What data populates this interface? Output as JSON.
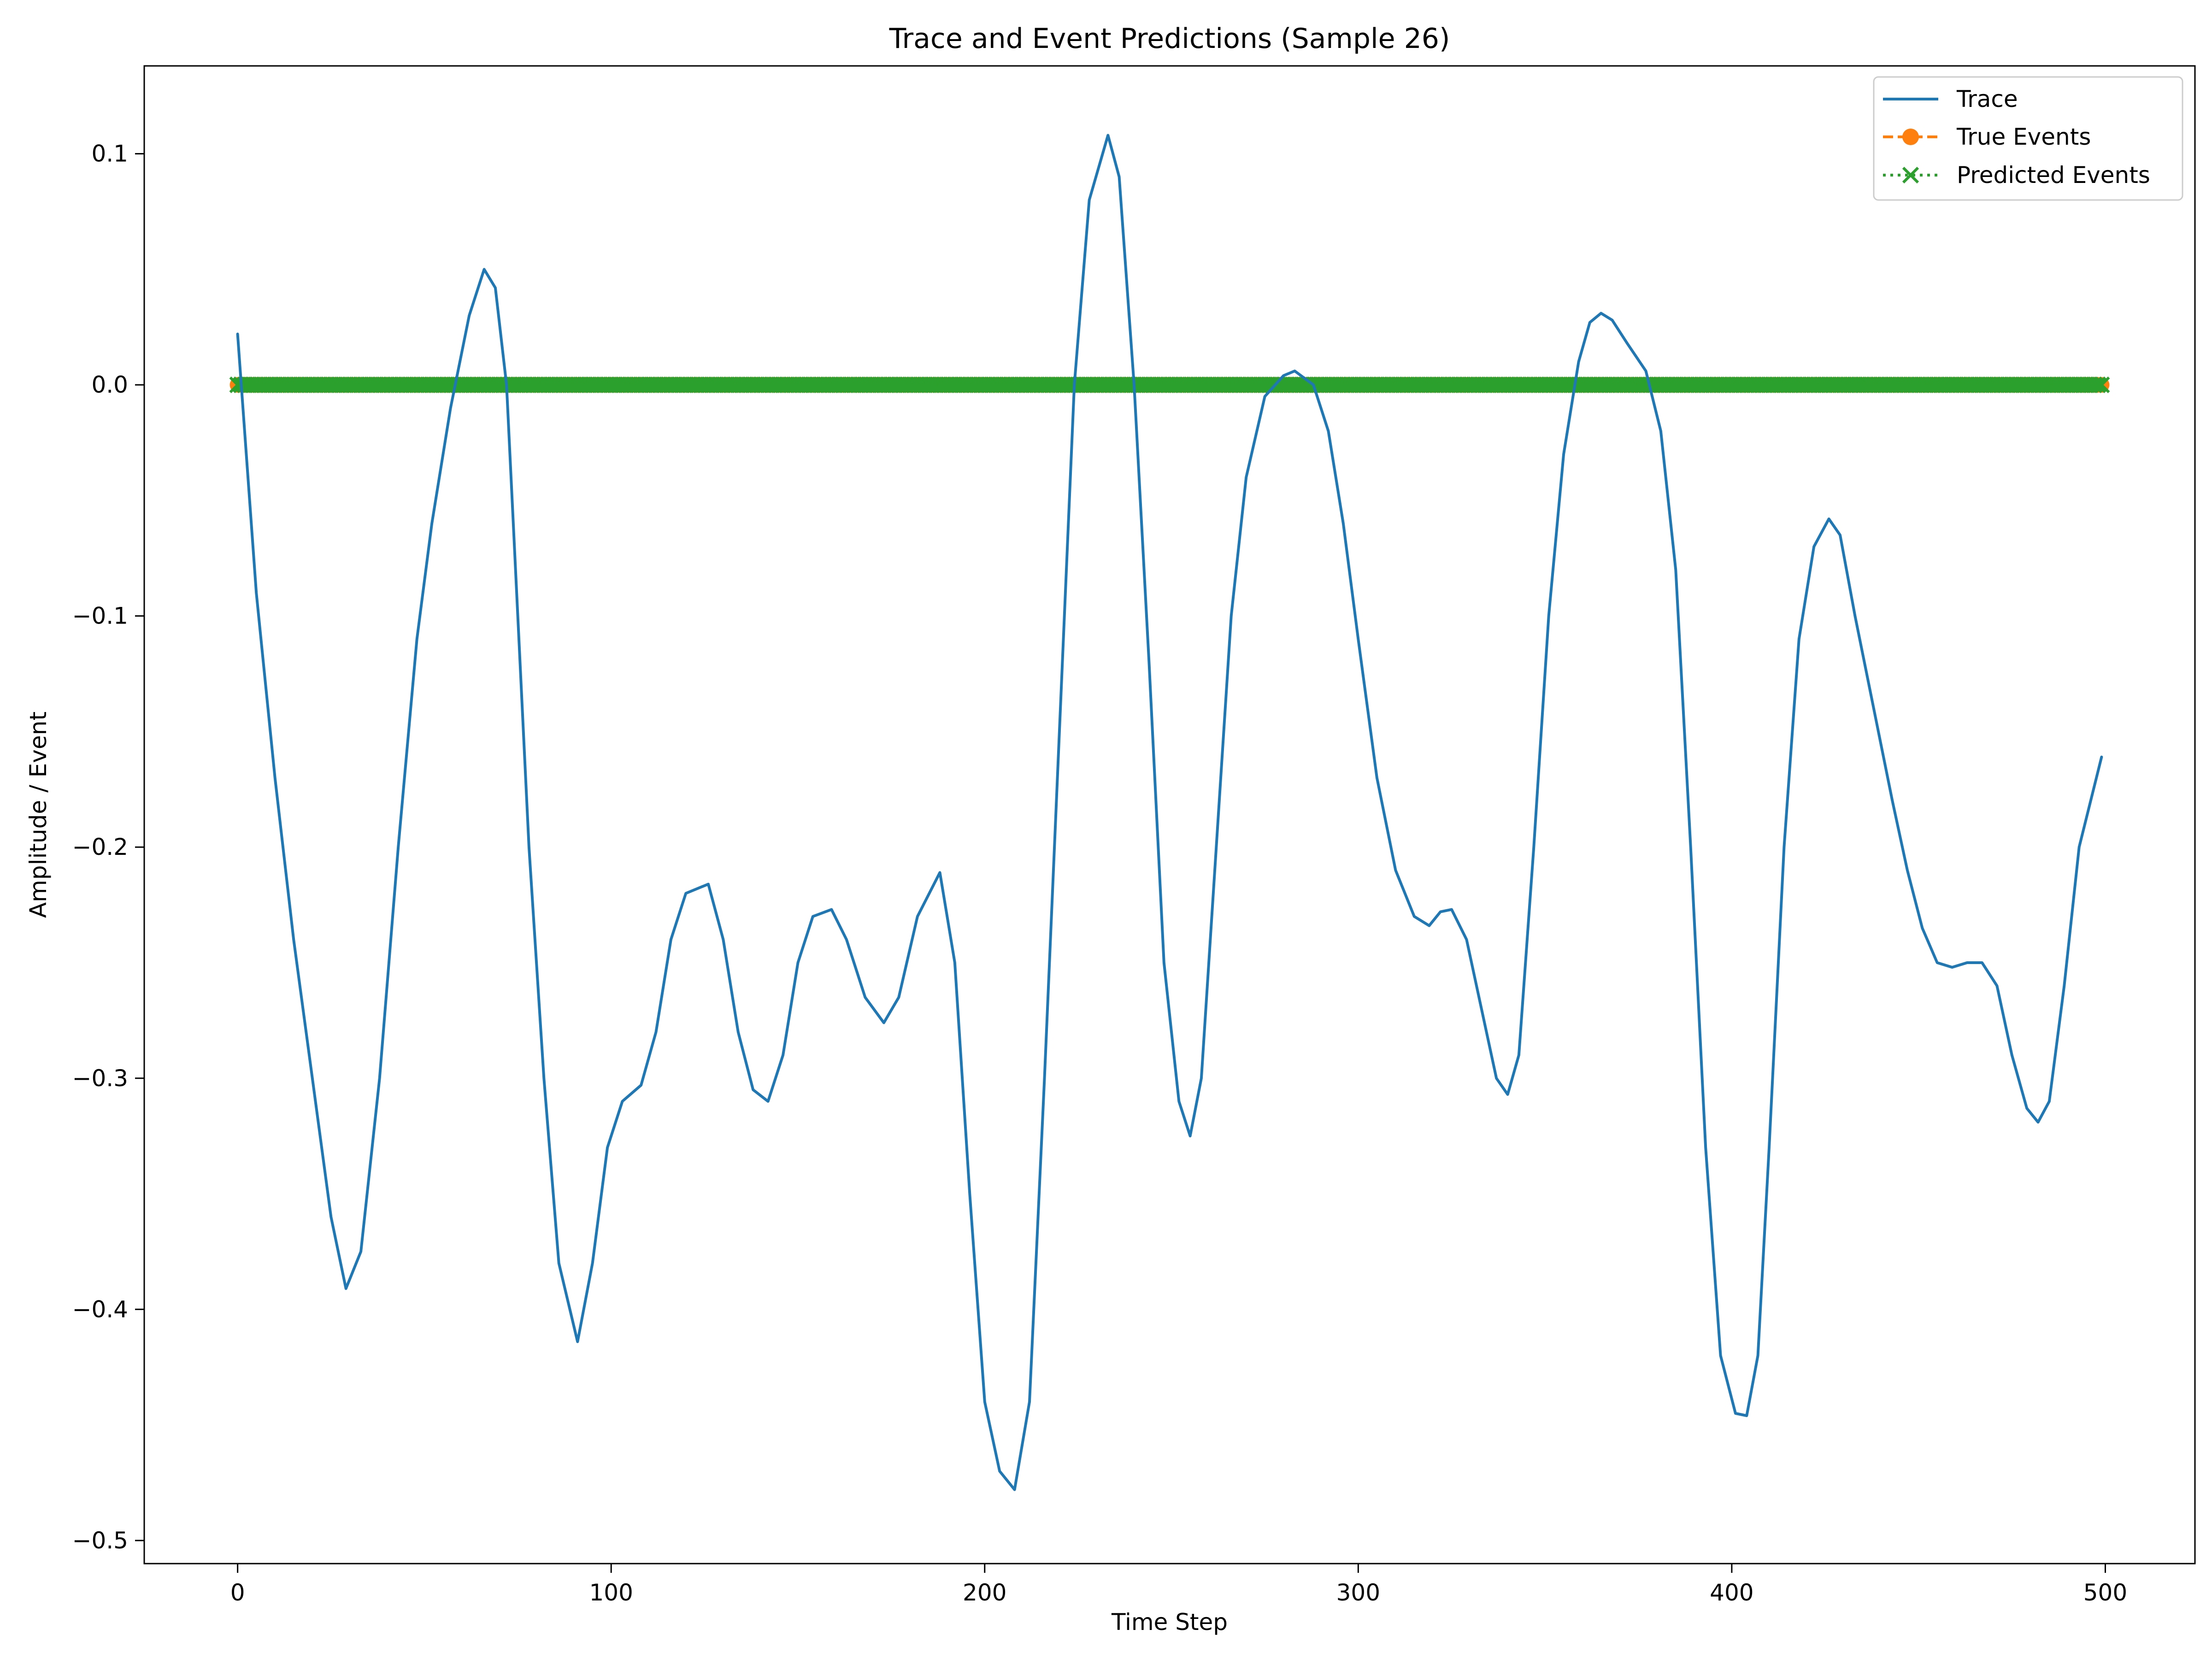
{
  "chart_data": {
    "type": "line",
    "title": "Trace and Event Predictions (Sample 26)",
    "xlabel": "Time Step",
    "ylabel": "Amplitude / Event",
    "xlim": [
      -25,
      524
    ],
    "ylim": [
      -0.51,
      0.138
    ],
    "xticks": [
      0,
      100,
      200,
      300,
      400,
      500
    ],
    "yticks": [
      0.1,
      0.0,
      -0.1,
      -0.2,
      -0.3,
      -0.4,
      -0.5
    ],
    "xtick_labels": [
      "0",
      "100",
      "200",
      "300",
      "400",
      "500"
    ],
    "ytick_labels": [
      "0.1",
      "0.0",
      "−0.1",
      "−0.2",
      "−0.3",
      "−0.4",
      "−0.5"
    ],
    "grid": false,
    "legend_position": "top-right",
    "series": [
      {
        "name": "Trace",
        "color": "#1f77b4",
        "style": "solid",
        "points": [
          [
            0,
            0.022
          ],
          [
            5,
            -0.09
          ],
          [
            10,
            -0.17
          ],
          [
            15,
            -0.24
          ],
          [
            20,
            -0.3
          ],
          [
            25,
            -0.36
          ],
          [
            29,
            -0.391
          ],
          [
            33,
            -0.375
          ],
          [
            38,
            -0.3
          ],
          [
            43,
            -0.2
          ],
          [
            48,
            -0.11
          ],
          [
            52,
            -0.06
          ],
          [
            57,
            -0.01
          ],
          [
            62,
            0.03
          ],
          [
            66,
            0.05
          ],
          [
            69,
            0.042
          ],
          [
            72,
            0.0
          ],
          [
            75,
            -0.1
          ],
          [
            78,
            -0.2
          ],
          [
            82,
            -0.3
          ],
          [
            86,
            -0.38
          ],
          [
            91,
            -0.414
          ],
          [
            95,
            -0.38
          ],
          [
            99,
            -0.33
          ],
          [
            103,
            -0.31
          ],
          [
            108,
            -0.303
          ],
          [
            112,
            -0.28
          ],
          [
            116,
            -0.24
          ],
          [
            120,
            -0.22
          ],
          [
            126,
            -0.216
          ],
          [
            130,
            -0.24
          ],
          [
            134,
            -0.28
          ],
          [
            138,
            -0.305
          ],
          [
            142,
            -0.31
          ],
          [
            146,
            -0.29
          ],
          [
            150,
            -0.25
          ],
          [
            154,
            -0.23
          ],
          [
            159,
            -0.227
          ],
          [
            163,
            -0.24
          ],
          [
            168,
            -0.265
          ],
          [
            173,
            -0.276
          ],
          [
            177,
            -0.265
          ],
          [
            182,
            -0.23
          ],
          [
            188,
            -0.211
          ],
          [
            192,
            -0.25
          ],
          [
            196,
            -0.35
          ],
          [
            200,
            -0.44
          ],
          [
            204,
            -0.47
          ],
          [
            208,
            -0.478
          ],
          [
            212,
            -0.44
          ],
          [
            216,
            -0.3
          ],
          [
            220,
            -0.15
          ],
          [
            224,
            0.0
          ],
          [
            228,
            0.08
          ],
          [
            233,
            0.108
          ],
          [
            236,
            0.09
          ],
          [
            240,
            0.0
          ],
          [
            244,
            -0.12
          ],
          [
            248,
            -0.25
          ],
          [
            252,
            -0.31
          ],
          [
            255,
            -0.325
          ],
          [
            258,
            -0.3
          ],
          [
            262,
            -0.2
          ],
          [
            266,
            -0.1
          ],
          [
            270,
            -0.04
          ],
          [
            275,
            -0.005
          ],
          [
            280,
            0.004
          ],
          [
            283,
            0.006
          ],
          [
            288,
            0.0
          ],
          [
            292,
            -0.02
          ],
          [
            296,
            -0.06
          ],
          [
            300,
            -0.11
          ],
          [
            305,
            -0.17
          ],
          [
            310,
            -0.21
          ],
          [
            315,
            -0.23
          ],
          [
            319,
            -0.234
          ],
          [
            322,
            -0.228
          ],
          [
            325,
            -0.227
          ],
          [
            329,
            -0.24
          ],
          [
            333,
            -0.27
          ],
          [
            337,
            -0.3
          ],
          [
            340,
            -0.307
          ],
          [
            343,
            -0.29
          ],
          [
            347,
            -0.2
          ],
          [
            351,
            -0.1
          ],
          [
            355,
            -0.03
          ],
          [
            359,
            0.01
          ],
          [
            362,
            0.027
          ],
          [
            365,
            0.031
          ],
          [
            368,
            0.028
          ],
          [
            372,
            0.018
          ],
          [
            377,
            0.006
          ],
          [
            381,
            -0.02
          ],
          [
            385,
            -0.08
          ],
          [
            389,
            -0.2
          ],
          [
            393,
            -0.33
          ],
          [
            397,
            -0.42
          ],
          [
            401,
            -0.445
          ],
          [
            404,
            -0.446
          ],
          [
            407,
            -0.42
          ],
          [
            410,
            -0.33
          ],
          [
            414,
            -0.2
          ],
          [
            418,
            -0.11
          ],
          [
            422,
            -0.07
          ],
          [
            426,
            -0.058
          ],
          [
            429,
            -0.065
          ],
          [
            433,
            -0.1
          ],
          [
            438,
            -0.14
          ],
          [
            443,
            -0.18
          ],
          [
            447,
            -0.21
          ],
          [
            451,
            -0.235
          ],
          [
            455,
            -0.25
          ],
          [
            459,
            -0.252
          ],
          [
            463,
            -0.25
          ],
          [
            467,
            -0.25
          ],
          [
            471,
            -0.26
          ],
          [
            475,
            -0.29
          ],
          [
            479,
            -0.313
          ],
          [
            482,
            -0.319
          ],
          [
            485,
            -0.31
          ],
          [
            489,
            -0.26
          ],
          [
            493,
            -0.2
          ],
          [
            499,
            -0.161
          ]
        ]
      },
      {
        "name": "True Events",
        "color": "#ff7f0e",
        "style": "dashed",
        "marker": "o",
        "x_range": [
          0,
          499
        ],
        "value": 0.0
      },
      {
        "name": "Predicted Events",
        "color": "#2ca02c",
        "style": "dotted",
        "marker": "x",
        "x_range": [
          0,
          499
        ],
        "value": 0.0
      }
    ]
  }
}
